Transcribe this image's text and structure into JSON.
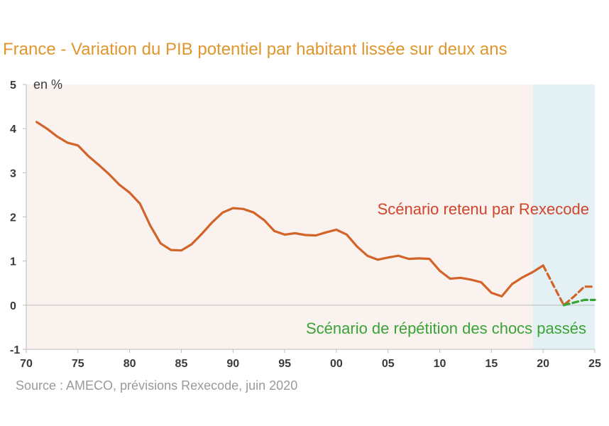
{
  "chart_data": {
    "type": "line",
    "title": "France - Variation du PIB potentiel par habitant lissée sur deux ans",
    "unit_label": "en %",
    "source": "Source : AMECO, prévisions Rexecode, juin 2020",
    "xlim": [
      1970,
      2025
    ],
    "ylim": [
      -1,
      5
    ],
    "x_ticks": [
      1970,
      1975,
      1980,
      1985,
      1990,
      1995,
      2000,
      2005,
      2010,
      2015,
      2020,
      2025
    ],
    "x_tick_labels": [
      "70",
      "75",
      "80",
      "85",
      "90",
      "95",
      "00",
      "05",
      "10",
      "15",
      "20",
      "25"
    ],
    "y_ticks": [
      -1,
      0,
      1,
      2,
      3,
      4,
      5
    ],
    "y_tick_labels": [
      "-1",
      "0",
      "1",
      "2",
      "3",
      "4",
      "5"
    ],
    "shaded_range": [
      2019,
      2025
    ],
    "colors": {
      "title": "#E0962E",
      "history": "#D2642A",
      "rexecode": "#D2642A",
      "repetition": "#3AA335",
      "shade": "#E3F1F4",
      "plot_bg": "#F9F2EF",
      "axis": "#BBBBBB",
      "source": "#9A9A9A"
    },
    "series": [
      {
        "key": "history",
        "x": [
          1971,
          1972,
          1973,
          1974,
          1975,
          1976,
          1977,
          1978,
          1979,
          1980,
          1981,
          1982,
          1983,
          1984,
          1985,
          1986,
          1987,
          1988,
          1989,
          1990,
          1991,
          1992,
          1993,
          1994,
          1995,
          1996,
          1997,
          1998,
          1999,
          2000,
          2001,
          2002,
          2003,
          2004,
          2005,
          2006,
          2007,
          2008,
          2009,
          2010,
          2011,
          2012,
          2013,
          2014,
          2015,
          2016,
          2017,
          2018,
          2019,
          2020
        ],
        "y": [
          4.15,
          4.0,
          3.82,
          3.68,
          3.62,
          3.38,
          3.18,
          2.97,
          2.73,
          2.55,
          2.3,
          1.8,
          1.4,
          1.25,
          1.24,
          1.38,
          1.62,
          1.88,
          2.1,
          2.2,
          2.18,
          2.1,
          1.93,
          1.68,
          1.6,
          1.63,
          1.59,
          1.58,
          1.65,
          1.71,
          1.6,
          1.33,
          1.12,
          1.03,
          1.08,
          1.12,
          1.05,
          1.06,
          1.05,
          0.78,
          0.6,
          0.62,
          0.58,
          0.52,
          0.28,
          0.2,
          0.48,
          0.63,
          0.75,
          0.9
        ]
      },
      {
        "key": "rexecode",
        "name": "Scénario retenu par Rexecode",
        "x": [
          2020,
          2021,
          2022,
          2023,
          2024,
          2025
        ],
        "y": [
          0.9,
          0.45,
          0.0,
          0.2,
          0.42,
          0.42
        ]
      },
      {
        "key": "repetition",
        "name": "Scénario de répétition des chocs passés",
        "x": [
          2022,
          2023,
          2024,
          2025
        ],
        "y": [
          0.0,
          0.06,
          0.12,
          0.12
        ]
      }
    ]
  }
}
